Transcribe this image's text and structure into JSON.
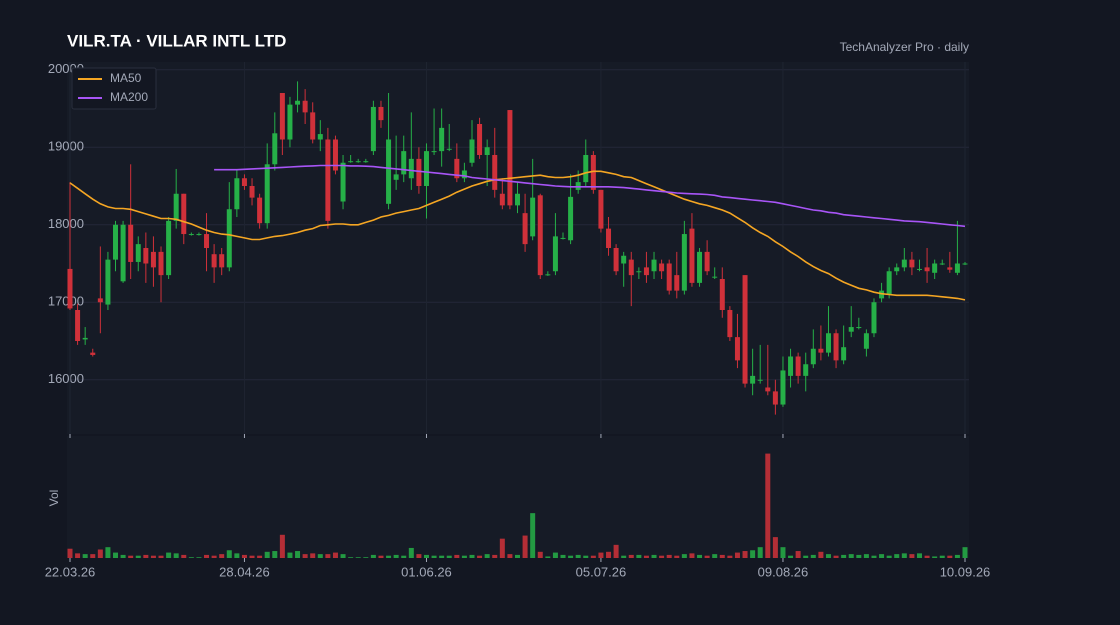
{
  "chart_data": {
    "type": "candlestick",
    "title": "VILR.TA  ·  VILLAR INTL LTD",
    "subtitle": "TechAnalyzer Pro · daily",
    "volume_label": "Vol",
    "categories": [
      "22.03.26",
      null,
      null,
      null,
      null,
      null,
      null,
      null,
      null,
      null,
      null,
      null,
      null,
      null,
      null,
      null,
      null,
      null,
      null,
      null,
      null,
      null,
      null,
      "28.04.26",
      null,
      null,
      null,
      null,
      null,
      null,
      null,
      null,
      null,
      null,
      null,
      null,
      null,
      null,
      null,
      null,
      null,
      null,
      null,
      null,
      null,
      null,
      null,
      "01.06.26",
      null,
      null,
      null,
      null,
      null,
      null,
      null,
      null,
      null,
      null,
      null,
      null,
      null,
      null,
      null,
      null,
      null,
      null,
      null,
      null,
      null,
      null,
      "05.07.26",
      null,
      null,
      null,
      null,
      null,
      null,
      null,
      null,
      null,
      null,
      null,
      null,
      null,
      null,
      null,
      null,
      null,
      null,
      null,
      null,
      null,
      null,
      null,
      "09.08.26",
      null,
      null,
      null,
      null,
      null,
      null,
      null,
      null,
      null,
      null,
      null,
      null,
      null,
      null,
      null,
      null,
      null,
      null,
      null,
      null,
      null,
      null,
      null,
      "10.09.26"
    ],
    "open": [
      17430,
      16900,
      16520,
      16350,
      17050,
      16970,
      17550,
      17270,
      18000,
      17520,
      17700,
      17650,
      17650,
      17350,
      18050,
      18400,
      17880,
      17880,
      17880,
      17620,
      17620,
      17450,
      18200,
      18600,
      18500,
      18350,
      18020,
      18780,
      19700,
      19100,
      19550,
      19600,
      19450,
      19100,
      19100,
      19100,
      18300,
      18820,
      18820,
      18820,
      18950,
      19520,
      18270,
      18580,
      18650,
      18600,
      18850,
      18500,
      18950,
      18950,
      18980,
      18850,
      18600,
      18800,
      19300,
      18900,
      18900,
      18400,
      19480,
      18250,
      18150,
      17850,
      18380,
      17360,
      17400,
      17830,
      17800,
      18450,
      18550,
      18900,
      18450,
      17950,
      17700,
      17500,
      17550,
      17400,
      17450,
      17400,
      17500,
      17500,
      17350,
      17150,
      17950,
      17250,
      17650,
      17330,
      17300,
      16900,
      16550,
      17350,
      15950,
      16000,
      15900,
      15850,
      15680,
      16050,
      16300,
      16050,
      16200,
      16400,
      16350,
      16600,
      16250,
      16620,
      16680,
      16400,
      16600,
      17050,
      17100,
      17400,
      17450,
      17550,
      17430,
      17450,
      17380,
      17500,
      17450,
      17380,
      17500
    ],
    "high": [
      18550,
      16980,
      16680,
      16400,
      17720,
      17650,
      18050,
      18050,
      18780,
      17850,
      17900,
      17850,
      17720,
      18100,
      18720,
      18400,
      17900,
      17900,
      18150,
      17750,
      17700,
      18550,
      18700,
      18650,
      18600,
      18400,
      19050,
      19450,
      19700,
      19650,
      19850,
      19750,
      19580,
      19350,
      19250,
      19150,
      18900,
      18900,
      18850,
      18850,
      19600,
      19600,
      19700,
      19150,
      19150,
      19450,
      19000,
      19050,
      19500,
      19500,
      19300,
      19050,
      18800,
      19350,
      19380,
      19100,
      19250,
      18600,
      19480,
      18550,
      18400,
      18850,
      18400,
      17400,
      18150,
      17900,
      18650,
      18700,
      19100,
      18950,
      18450,
      18100,
      17750,
      17650,
      17650,
      17450,
      17650,
      17650,
      17550,
      17550,
      17650,
      18050,
      18150,
      17700,
      17800,
      17450,
      17450,
      16950,
      16850,
      17350,
      16400,
      16450,
      16450,
      16000,
      16300,
      16400,
      16350,
      16350,
      16650,
      16700,
      16950,
      16650,
      16700,
      16950,
      16800,
      16650,
      17050,
      17250,
      17450,
      17500,
      17700,
      17650,
      17550,
      17700,
      17550,
      17550,
      17650,
      18050,
      17520
    ],
    "low": [
      16900,
      16450,
      16450,
      16300,
      16600,
      16900,
      17400,
      17250,
      17300,
      17400,
      17250,
      17200,
      17000,
      17300,
      17950,
      17750,
      17860,
      17860,
      17400,
      17250,
      17350,
      17400,
      18100,
      18450,
      18250,
      17950,
      17950,
      18700,
      18900,
      19000,
      19450,
      19300,
      19050,
      18950,
      17950,
      18650,
      18200,
      18800,
      18800,
      18800,
      18900,
      19250,
      18200,
      18450,
      18550,
      18450,
      18400,
      18080,
      18900,
      18750,
      18950,
      18550,
      18550,
      18750,
      18850,
      18500,
      18350,
      18200,
      18200,
      18150,
      17650,
      17800,
      17300,
      17340,
      17350,
      17810,
      17750,
      18400,
      18500,
      18400,
      17900,
      17600,
      17350,
      17200,
      16950,
      17300,
      17250,
      17300,
      17300,
      17100,
      17050,
      17100,
      17200,
      17200,
      17350,
      17300,
      16800,
      16500,
      16150,
      15900,
      15800,
      15950,
      15800,
      15550,
      15650,
      15900,
      15950,
      15850,
      16150,
      16250,
      16300,
      16150,
      16200,
      16550,
      16650,
      16300,
      16550,
      17000,
      17050,
      17350,
      17400,
      17350,
      17400,
      17250,
      17300,
      17480,
      17380,
      17350,
      17480
    ],
    "close": [
      16920,
      16500,
      16540,
      16320,
      17000,
      17550,
      18000,
      18000,
      17520,
      17750,
      17500,
      17450,
      17350,
      18050,
      18400,
      17880,
      17880,
      17880,
      17700,
      17450,
      17450,
      18200,
      18600,
      18500,
      18350,
      18020,
      18780,
      19180,
      19100,
      19550,
      19600,
      19450,
      19100,
      19170,
      18050,
      18700,
      18800,
      18820,
      18820,
      18820,
      19520,
      19350,
      19100,
      18650,
      18950,
      18850,
      18500,
      18950,
      18950,
      19250,
      18980,
      18600,
      18700,
      19100,
      18900,
      19000,
      18450,
      18250,
      18250,
      18400,
      17750,
      18350,
      17350,
      17360,
      17850,
      17830,
      18360,
      18550,
      18900,
      18450,
      17950,
      17700,
      17400,
      17600,
      17350,
      17400,
      17350,
      17550,
      17400,
      17150,
      17150,
      17880,
      17250,
      17650,
      17400,
      17330,
      16900,
      16550,
      16250,
      15950,
      16050,
      16000,
      15850,
      15680,
      16120,
      16300,
      16050,
      16200,
      16400,
      16350,
      16600,
      16250,
      16420,
      16680,
      16680,
      16600,
      17000,
      17150,
      17400,
      17450,
      17550,
      17450,
      17430,
      17400,
      17500,
      17500,
      17420,
      17500,
      17500
    ],
    "volume": [
      12,
      6,
      5,
      5,
      11,
      14,
      7,
      4,
      3,
      3,
      4,
      3,
      3,
      7,
      6,
      4,
      1,
      1,
      4,
      3,
      5,
      10,
      6,
      4,
      3,
      3,
      8,
      9,
      30,
      7,
      9,
      5,
      6,
      5,
      5,
      7,
      5,
      1,
      1,
      1,
      4,
      3,
      3,
      4,
      3,
      13,
      5,
      4,
      3,
      3,
      3,
      4,
      3,
      4,
      3,
      5,
      4,
      25,
      5,
      4,
      29,
      58,
      8,
      2,
      7,
      4,
      3,
      4,
      3,
      3,
      7,
      8,
      17,
      3,
      4,
      4,
      3,
      4,
      3,
      4,
      3,
      5,
      6,
      4,
      3,
      5,
      4,
      3,
      7,
      9,
      10,
      14,
      135,
      27,
      14,
      3,
      9,
      3,
      4,
      8,
      5,
      3,
      4,
      5,
      4,
      5,
      3,
      5,
      3,
      5,
      6,
      5,
      6,
      3,
      2,
      3,
      3,
      4,
      14
    ],
    "series": [
      {
        "name": "MA50",
        "color": "#f5a623",
        "values": [
          18540,
          18470,
          18400,
          18330,
          18270,
          18230,
          18210,
          18210,
          18200,
          18170,
          18140,
          18110,
          18080,
          18080,
          18070,
          18040,
          18010,
          17970,
          17930,
          17900,
          17880,
          17870,
          17850,
          17830,
          17810,
          17810,
          17830,
          17850,
          17860,
          17880,
          17900,
          17930,
          17950,
          17990,
          18000,
          18010,
          18010,
          18000,
          18000,
          18030,
          18060,
          18100,
          18120,
          18150,
          18170,
          18190,
          18210,
          18250,
          18290,
          18330,
          18370,
          18420,
          18460,
          18500,
          18530,
          18560,
          18580,
          18590,
          18600,
          18610,
          18620,
          18630,
          18640,
          18620,
          18610,
          18610,
          18620,
          18640,
          18670,
          18690,
          18690,
          18670,
          18650,
          18620,
          18610,
          18570,
          18530,
          18490,
          18450,
          18410,
          18370,
          18330,
          18300,
          18270,
          18250,
          18220,
          18190,
          18150,
          18090,
          18030,
          17960,
          17900,
          17850,
          17780,
          17720,
          17650,
          17590,
          17520,
          17460,
          17410,
          17370,
          17310,
          17260,
          17220,
          17180,
          17160,
          17130,
          17110,
          17100,
          17090,
          17090,
          17090,
          17090,
          17090,
          17080,
          17070,
          17060,
          17050,
          17030
        ]
      },
      {
        "name": "MA200",
        "color": "#a855f7",
        "values": [
          null,
          null,
          null,
          null,
          null,
          null,
          null,
          null,
          null,
          null,
          null,
          null,
          null,
          null,
          null,
          null,
          null,
          null,
          null,
          18710,
          18710,
          18710,
          18710,
          18715,
          18720,
          18725,
          18730,
          18735,
          18740,
          18745,
          18750,
          18755,
          18760,
          18765,
          18765,
          18765,
          18765,
          18760,
          18760,
          18755,
          18750,
          18740,
          18730,
          18720,
          18710,
          18700,
          18690,
          18680,
          18670,
          18660,
          18650,
          18640,
          18630,
          18610,
          18600,
          18590,
          18580,
          18570,
          18560,
          18550,
          18540,
          18530,
          18520,
          18510,
          18500,
          18495,
          18490,
          18490,
          18490,
          18490,
          18490,
          18490,
          18485,
          18480,
          18470,
          18460,
          18450,
          18440,
          18430,
          18420,
          18410,
          18405,
          18400,
          18395,
          18390,
          18380,
          18360,
          18350,
          18340,
          18330,
          18320,
          18310,
          18300,
          18290,
          18270,
          18250,
          18230,
          18210,
          18190,
          18180,
          18160,
          18150,
          18130,
          18120,
          18110,
          18100,
          18090,
          18080,
          18070,
          18060,
          18050,
          18045,
          18040,
          18030,
          18020,
          18010,
          18000,
          17990,
          17980
        ]
      }
    ],
    "up_color": "#26b048",
    "down_color": "#d0313a",
    "ylim": [
      15300,
      20100
    ],
    "yticks": [
      16000,
      17000,
      18000,
      19000,
      20000
    ],
    "volume_ylim": [
      0,
      150
    ],
    "grid": true,
    "legend": "top-left"
  }
}
